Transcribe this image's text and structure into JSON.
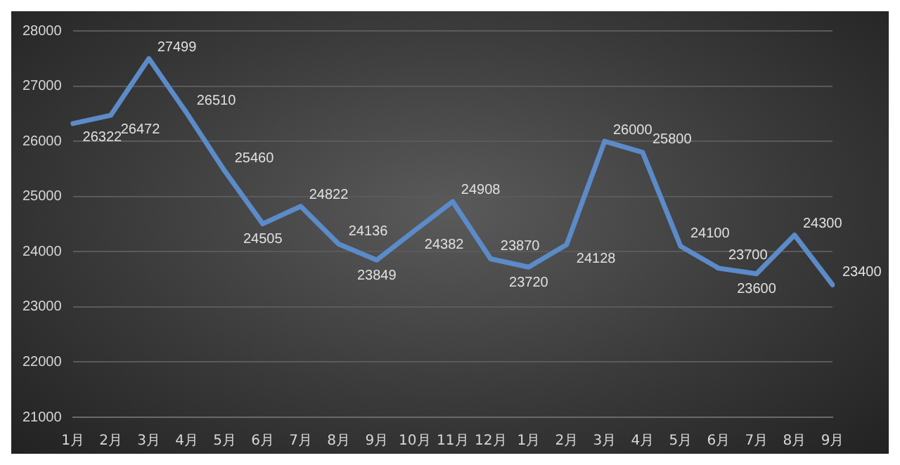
{
  "chart_data": {
    "type": "line",
    "categories": [
      "1月",
      "2月",
      "3月",
      "4月",
      "5月",
      "6月",
      "7月",
      "8月",
      "9月",
      "10月",
      "11月",
      "12月",
      "1月",
      "2月",
      "3月",
      "4月",
      "5月",
      "6月",
      "7月",
      "8月",
      "9月"
    ],
    "series": [
      {
        "color": "#5b8bc8",
        "values": [
          26322,
          26472,
          27499,
          26510,
          25460,
          24505,
          24822,
          24136,
          23849,
          24382,
          24908,
          23870,
          23720,
          24128,
          26000,
          25800,
          24100,
          23700,
          23600,
          24300,
          23400
        ]
      }
    ],
    "ylim": [
      21000,
      28000
    ],
    "yticks": [
      21000,
      22000,
      23000,
      24000,
      25000,
      26000,
      27000,
      28000
    ],
    "grid": "y",
    "legend": false,
    "marker": "none",
    "line_style": "solid",
    "data_labels": true
  }
}
